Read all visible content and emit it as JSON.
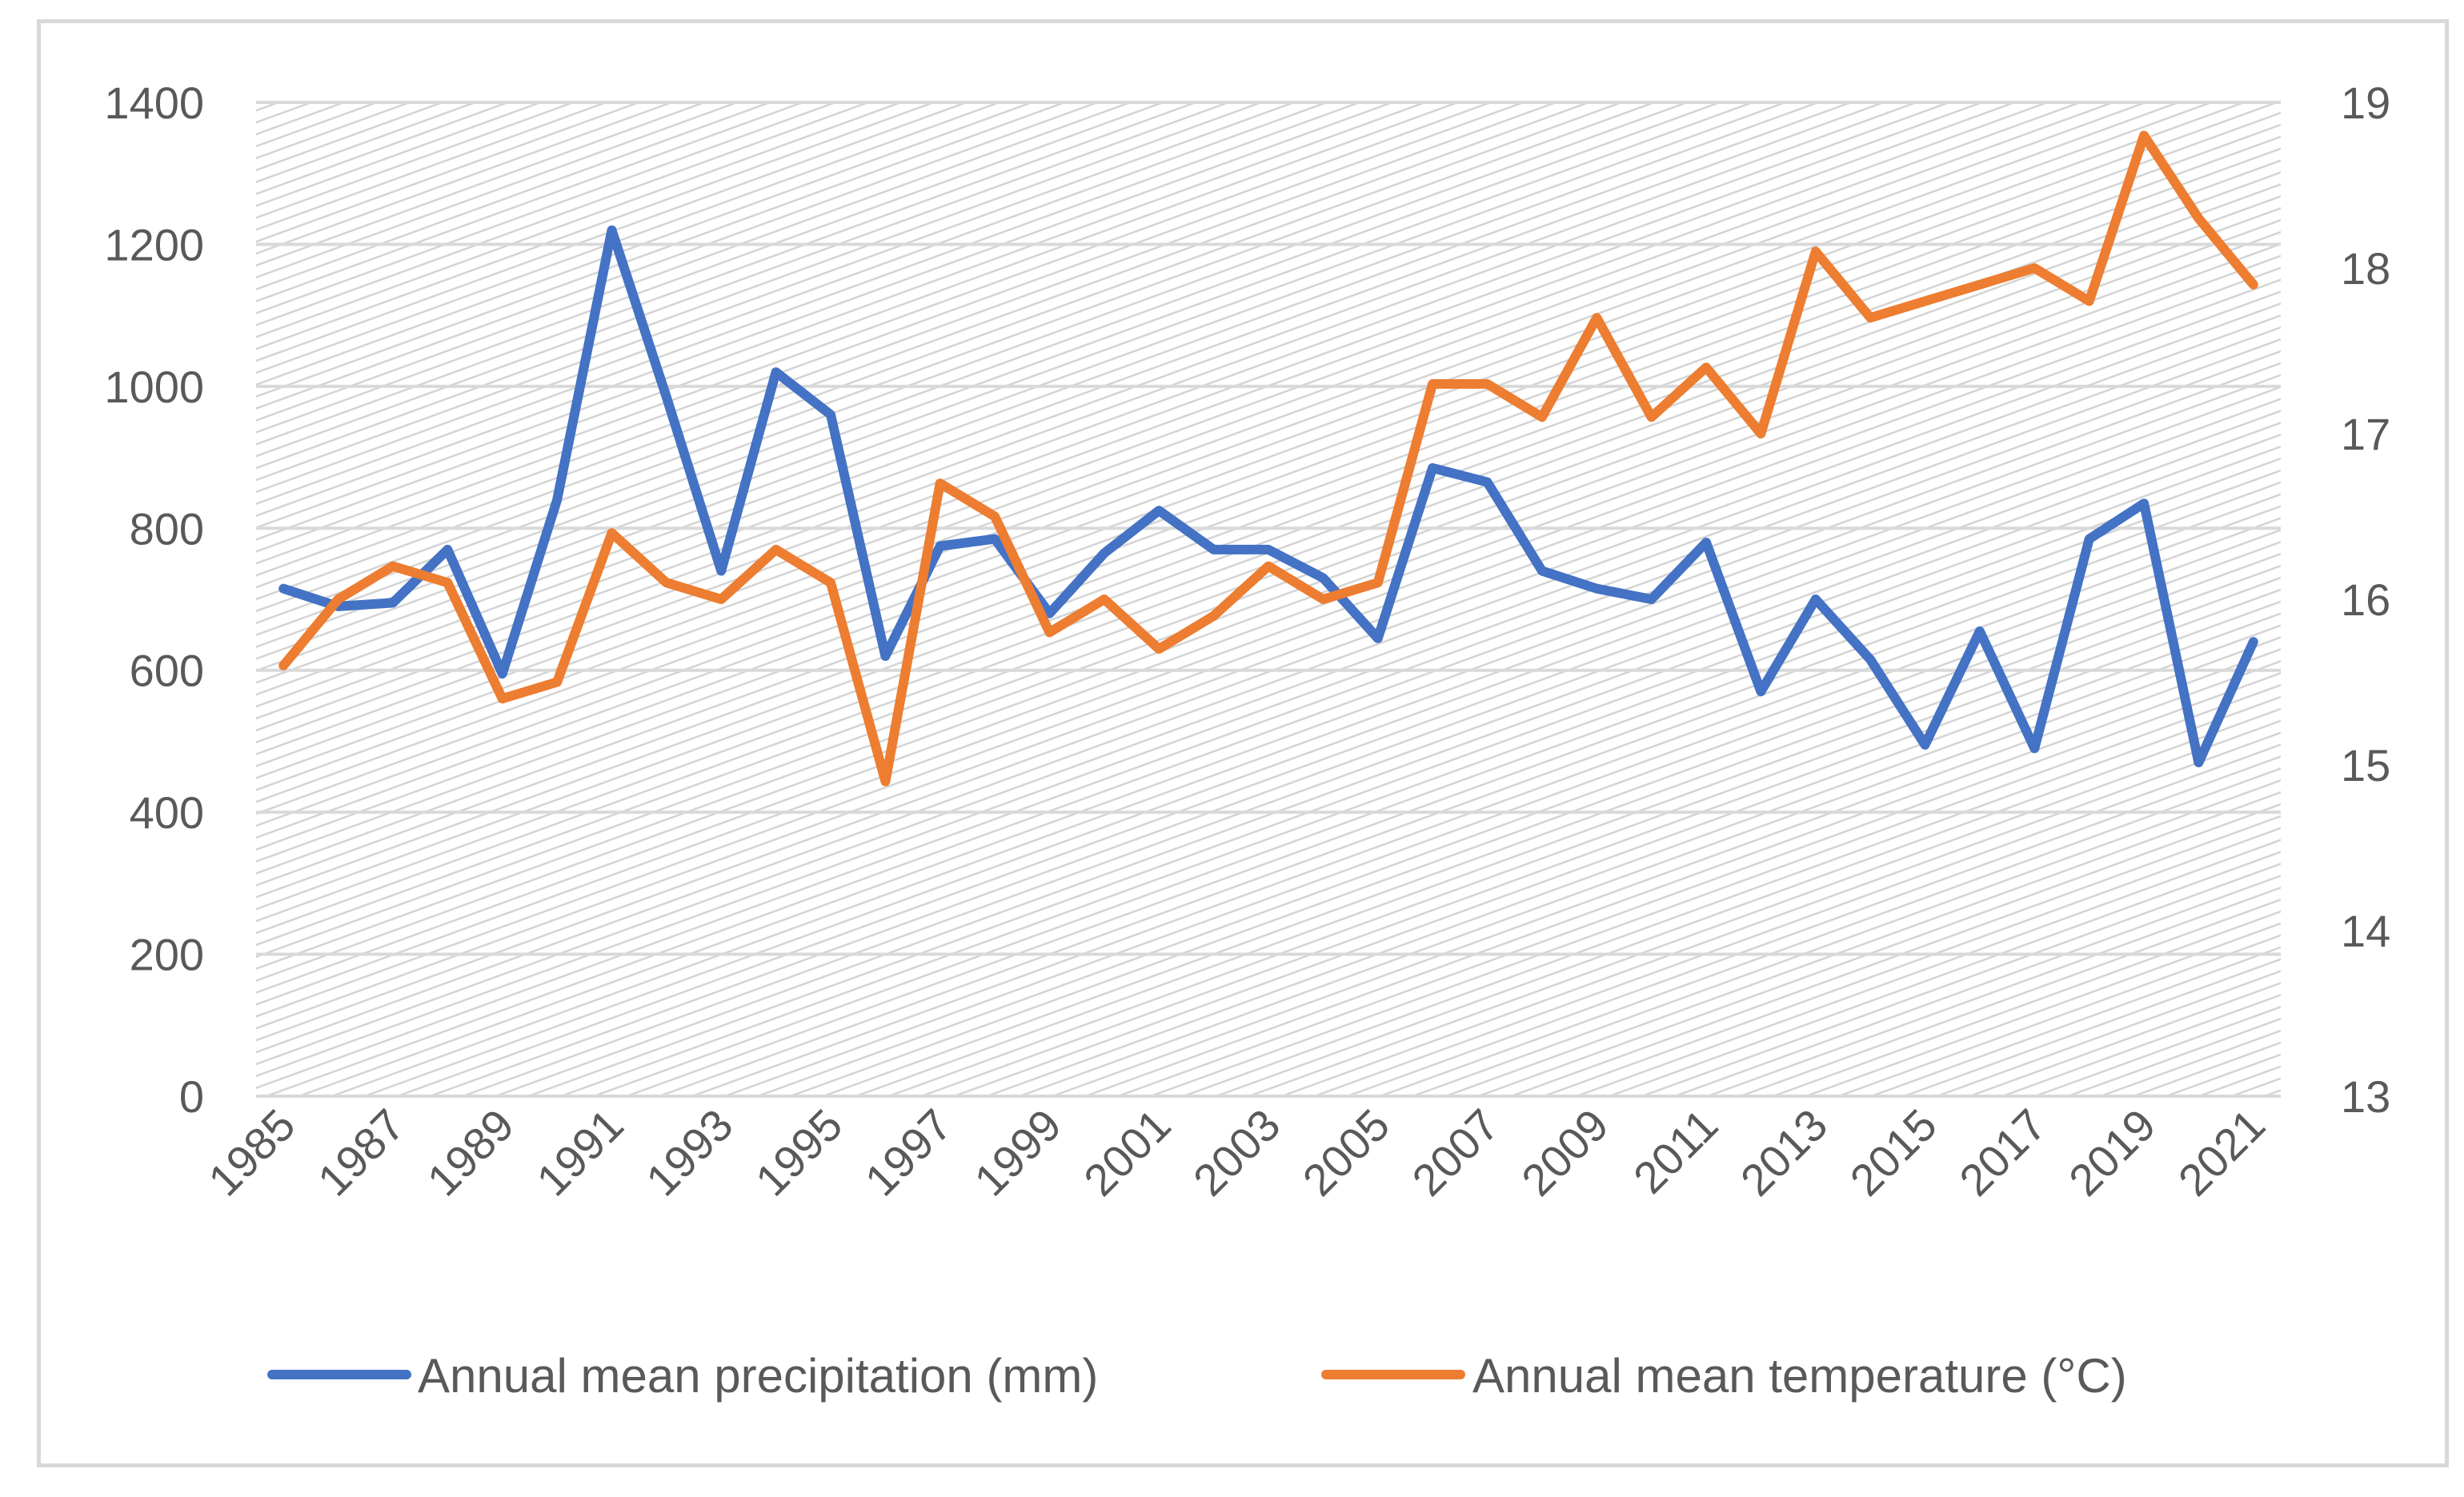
{
  "chart_data": {
    "type": "line",
    "title": "",
    "x": [
      1985,
      1986,
      1987,
      1988,
      1989,
      1990,
      1991,
      1992,
      1993,
      1994,
      1995,
      1996,
      1997,
      1998,
      1999,
      2000,
      2001,
      2002,
      2003,
      2004,
      2005,
      2006,
      2007,
      2008,
      2009,
      2010,
      2011,
      2012,
      2013,
      2014,
      2015,
      2016,
      2017,
      2018,
      2019,
      2020,
      2021
    ],
    "x_tick_labels": [
      "1985",
      "1987",
      "1989",
      "1991",
      "1993",
      "1995",
      "1997",
      "1999",
      "2001",
      "2003",
      "2005",
      "2007",
      "2009",
      "2011",
      "2013",
      "2015",
      "2017",
      "2019",
      "2021"
    ],
    "y_left": {
      "ylim": [
        0,
        1400
      ],
      "ticks": [
        "0",
        "200",
        "400",
        "600",
        "800",
        "1000",
        "1200",
        "1400"
      ]
    },
    "y_right": {
      "ylim": [
        13,
        19
      ],
      "ticks": [
        "13",
        "14",
        "15",
        "16",
        "17",
        "18",
        "19"
      ]
    },
    "series": [
      {
        "name": "Annual mean precipitation (mm)",
        "axis": "left",
        "color": "#4472c4",
        "values": [
          715,
          690,
          695,
          770,
          595,
          840,
          1220,
          985,
          740,
          1020,
          960,
          620,
          775,
          785,
          680,
          765,
          825,
          770,
          770,
          730,
          645,
          885,
          865,
          740,
          715,
          700,
          780,
          570,
          700,
          615,
          495,
          655,
          490,
          785,
          835,
          470,
          640
        ]
      },
      {
        "name": "Annual mean temperature (°C)",
        "axis": "right",
        "color": "#ed7d31",
        "values": [
          15.6,
          16.0,
          16.2,
          16.1,
          15.4,
          15.5,
          16.4,
          16.1,
          16.0,
          16.3,
          16.1,
          14.9,
          16.7,
          16.5,
          15.8,
          16.0,
          15.7,
          15.9,
          16.2,
          16.0,
          16.1,
          17.3,
          17.3,
          17.1,
          17.7,
          17.1,
          17.4,
          17.0,
          18.1,
          17.7,
          17.8,
          17.9,
          18.0,
          17.8,
          18.8,
          18.3,
          17.9
        ]
      }
    ]
  }
}
